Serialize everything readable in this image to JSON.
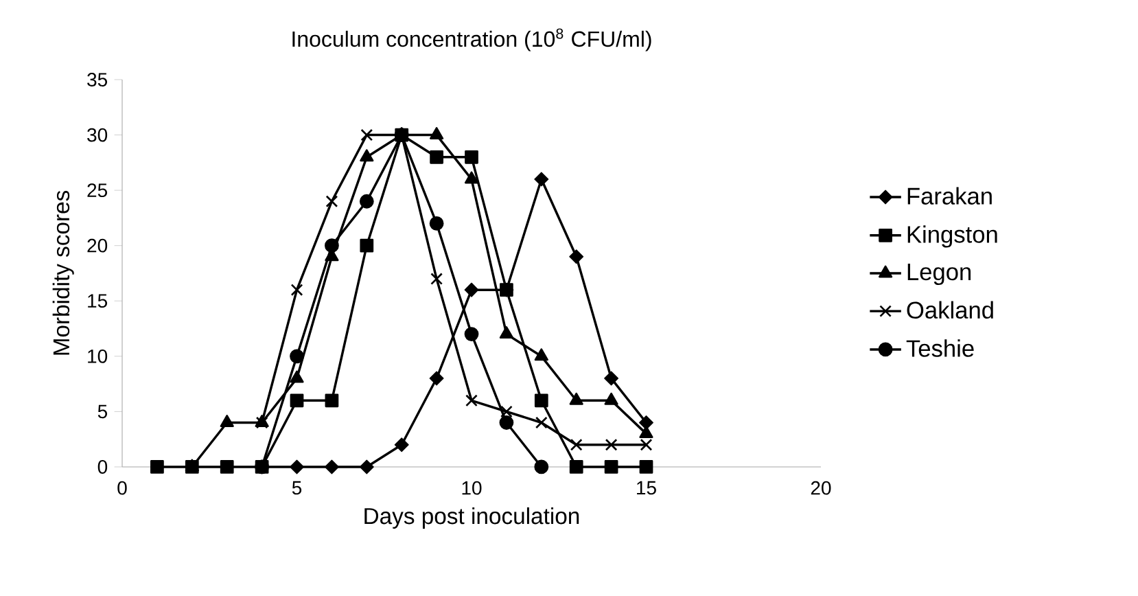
{
  "chart_data": {
    "type": "line",
    "title": "Inoculum concentration (10$^{8}$ CFU/ml)",
    "xlabel": "Days post inoculation",
    "ylabel": "Morbidity scores",
    "x": [
      1,
      2,
      3,
      4,
      5,
      6,
      7,
      8,
      9,
      10,
      11,
      12,
      13,
      14,
      15
    ],
    "series": [
      {
        "name": "Farakan",
        "color": "#000000",
        "marker": "diamond",
        "x": [
          4,
          5,
          6,
          7,
          8,
          9,
          10,
          11,
          12,
          13,
          14,
          15
        ],
        "values": [
          0,
          0,
          0,
          0,
          2,
          8,
          16,
          16,
          26,
          19,
          8,
          4
        ]
      },
      {
        "name": "Kingston",
        "color": "#000000",
        "marker": "square",
        "values": [
          0,
          0,
          0,
          0,
          6,
          6,
          20,
          30,
          28,
          28,
          16,
          6,
          0,
          0,
          0
        ]
      },
      {
        "name": "Legon",
        "color": "#000000",
        "marker": "triangle",
        "x": [
          2,
          3,
          4,
          5,
          6,
          7,
          8,
          9,
          10,
          11,
          12,
          13,
          14,
          15
        ],
        "values": [
          0,
          4,
          4,
          8,
          19,
          28,
          30,
          30,
          26,
          12,
          10,
          6,
          6,
          3
        ]
      },
      {
        "name": "Oakland",
        "color": "#000000",
        "marker": "cross",
        "x": [
          4,
          5,
          6,
          7,
          8,
          9,
          10,
          11,
          12,
          13,
          14,
          15
        ],
        "values": [
          4,
          16,
          24,
          30,
          30,
          17,
          6,
          5,
          4,
          2,
          2,
          2
        ]
      },
      {
        "name": "Teshie",
        "color": "#000000",
        "marker": "circle",
        "x": [
          4,
          5,
          6,
          7,
          8,
          9,
          10,
          11,
          12
        ],
        "values": [
          0,
          10,
          20,
          24,
          30,
          22,
          12,
          4,
          0
        ]
      }
    ],
    "xlim": [
      0,
      20
    ],
    "ylim": [
      0,
      35
    ],
    "xticks": [
      0,
      5,
      10,
      15,
      20
    ],
    "yticks": [
      0,
      5,
      10,
      15,
      20,
      25,
      30,
      35
    ],
    "legend": "right",
    "line_style": "solid"
  }
}
